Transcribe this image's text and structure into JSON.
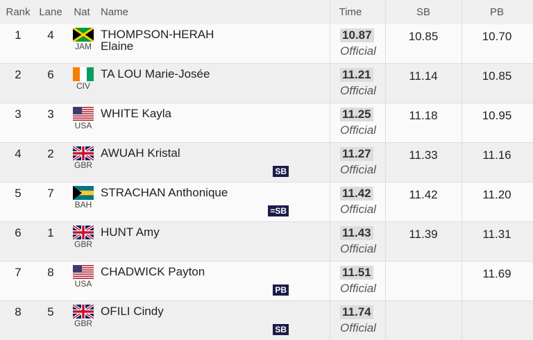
{
  "table": {
    "header": [
      "Rank",
      "Lane",
      "Nat",
      "Name",
      "Time",
      "SB",
      "PB"
    ],
    "rows": [
      {
        "rank": "1",
        "lane": "4",
        "nat": "JAM",
        "name": "THOMPSON-HERAH Elaine",
        "time": "10.87",
        "status": "Official",
        "sb": "10.85",
        "pb": "10.70"
      },
      {
        "rank": "2",
        "lane": "6",
        "nat": "CIV",
        "name": "TA LOU Marie-Josée",
        "time": "11.21",
        "status": "Official",
        "sb": "11.14",
        "pb": "10.85"
      },
      {
        "rank": "3",
        "lane": "3",
        "nat": "USA",
        "name": "WHITE Kayla",
        "time": "11.25",
        "status": "Official",
        "sb": "11.18",
        "pb": "10.95"
      },
      {
        "rank": "4",
        "lane": "2",
        "nat": "GBR",
        "name": "AWUAH Kristal",
        "time": "11.27",
        "status": "Official",
        "sb": "11.33",
        "pb": "11.16",
        "badge": "SB"
      },
      {
        "rank": "5",
        "lane": "7",
        "nat": "BAH",
        "name": "STRACHAN Anthonique",
        "time": "11.42",
        "status": "Official",
        "sb": "11.42",
        "pb": "11.20",
        "badge": "=SB"
      },
      {
        "rank": "6",
        "lane": "1",
        "nat": "GBR",
        "name": "HUNT Amy",
        "time": "11.43",
        "status": "Official",
        "sb": "11.39",
        "pb": "11.31"
      },
      {
        "rank": "7",
        "lane": "8",
        "nat": "USA",
        "name": "CHADWICK Payton",
        "time": "11.51",
        "status": "Official",
        "pb": "11.69",
        "badge": "PB"
      },
      {
        "rank": "8",
        "lane": "5",
        "nat": "GBR",
        "name": "OFILI Cindy",
        "time": "11.74",
        "status": "Official",
        "pb": "",
        "badge": "SB"
      }
    ]
  }
}
